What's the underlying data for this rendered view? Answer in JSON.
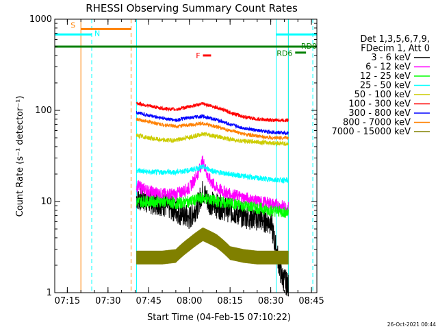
{
  "chart_data": {
    "type": "line",
    "title": "RHESSI Observing Summary Count Rates",
    "xlabel": "Start Time (04-Feb-15 07:10:22)",
    "ylabel": "Count Rate (s⁻¹ detector⁻¹)",
    "ylog": true,
    "ylim": [
      1,
      1000
    ],
    "xlim": [
      "07:10:22",
      "08:47:00"
    ],
    "x_ticks": [
      "07:15",
      "07:30",
      "07:45",
      "08:00",
      "08:15",
      "08:30",
      "08:45"
    ],
    "y_ticks": [
      "1",
      "10",
      "100",
      "1000"
    ],
    "legend_header": [
      "Det 1,3,5,6,7,9,",
      "FDecim 1, Att 0"
    ],
    "legend_position": "right",
    "data_start": "07:40:30",
    "data_end": "08:36:30",
    "series": [
      {
        "name": "3 - 6 keV",
        "color": "#000000",
        "x": [
          "07:40:30",
          "07:45",
          "07:50",
          "07:55",
          "08:00",
          "08:03",
          "08:05",
          "08:07",
          "08:10",
          "08:15",
          "08:20",
          "08:25",
          "08:30",
          "08:32",
          "08:34",
          "08:36:30"
        ],
        "y": [
          11,
          10,
          9.5,
          8,
          6.5,
          9,
          13,
          10,
          9,
          8,
          7,
          6.5,
          6,
          3,
          1.5,
          1.2
        ]
      },
      {
        "name": "6 - 12 keV",
        "color": "#ff00ff",
        "x": [
          "07:40:30",
          "07:45",
          "07:50",
          "07:55",
          "08:00",
          "08:03",
          "08:05",
          "08:07",
          "08:10",
          "08:15",
          "08:20",
          "08:25",
          "08:30",
          "08:36:30"
        ],
        "y": [
          15,
          13,
          12,
          12,
          14,
          20,
          28,
          18,
          14,
          12,
          11,
          10,
          9.5,
          8.5
        ]
      },
      {
        "name": "12 - 25 keV",
        "color": "#00ff00",
        "x": [
          "07:40:30",
          "07:45",
          "07:50",
          "07:55",
          "08:00",
          "08:05",
          "08:10",
          "08:15",
          "08:20",
          "08:25",
          "08:30",
          "08:36:30"
        ],
        "y": [
          10,
          10,
          10,
          9.5,
          10,
          11,
          10,
          9.5,
          9,
          8.5,
          8,
          7.5
        ]
      },
      {
        "name": "25 - 50 keV",
        "color": "#00ffff",
        "x": [
          "07:40:30",
          "07:45",
          "07:50",
          "07:55",
          "08:00",
          "08:05",
          "08:10",
          "08:15",
          "08:20",
          "08:25",
          "08:30",
          "08:36:30"
        ],
        "y": [
          22,
          21,
          21,
          21,
          22,
          24,
          21,
          20,
          19,
          18,
          17.5,
          17
        ]
      },
      {
        "name": "50 - 100 keV",
        "color": "#cccc00",
        "x": [
          "07:40:30",
          "07:45",
          "07:50",
          "07:55",
          "08:00",
          "08:05",
          "08:10",
          "08:15",
          "08:20",
          "08:25",
          "08:30",
          "08:36:30"
        ],
        "y": [
          53,
          50,
          47,
          47,
          51,
          55,
          52,
          48,
          46,
          45,
          44,
          43
        ]
      },
      {
        "name": "100 - 300 keV",
        "color": "#ff0000",
        "x": [
          "07:40:30",
          "07:45",
          "07:50",
          "07:55",
          "08:00",
          "08:05",
          "08:10",
          "08:15",
          "08:20",
          "08:25",
          "08:30",
          "08:36:30"
        ],
        "y": [
          120,
          112,
          105,
          102,
          110,
          118,
          108,
          95,
          85,
          80,
          78,
          78
        ]
      },
      {
        "name": "300 - 800 keV",
        "color": "#0000ff",
        "x": [
          "07:40:30",
          "07:45",
          "07:50",
          "07:55",
          "08:00",
          "08:05",
          "08:10",
          "08:15",
          "08:20",
          "08:25",
          "08:30",
          "08:36:30"
        ],
        "y": [
          95,
          88,
          82,
          78,
          83,
          86,
          79,
          70,
          64,
          60,
          58,
          56
        ]
      },
      {
        "name": "800 - 7000 keV",
        "color": "#ff8000",
        "x": [
          "07:40:30",
          "07:45",
          "07:50",
          "07:55",
          "08:00",
          "08:05",
          "08:10",
          "08:15",
          "08:20",
          "08:25",
          "08:30",
          "08:36:30"
        ],
        "y": [
          80,
          75,
          70,
          67,
          69,
          72,
          66,
          60,
          55,
          52,
          50,
          50
        ]
      },
      {
        "name": "7000 - 15000 keV",
        "color": "#808000",
        "x": [
          "07:40:30",
          "07:45",
          "07:50",
          "07:55",
          "08:00",
          "08:05",
          "08:10",
          "08:15",
          "08:20",
          "08:25",
          "08:30",
          "08:36:30"
        ],
        "y": [
          2.5,
          2.5,
          2.5,
          2.6,
          3.5,
          4.5,
          3.8,
          2.8,
          2.6,
          2.5,
          2.5,
          2.5
        ]
      }
    ],
    "flags": {
      "S": {
        "label": "S",
        "color": "#ff8000",
        "start": "07:20:00",
        "end": "07:38:30",
        "level": 780
      },
      "N": {
        "label": "N",
        "color": "#00ffff",
        "start": "07:10:22",
        "end": "07:24:00",
        "level": 680
      },
      "F": {
        "label": "F",
        "color": "#ff0000",
        "start": "08:05:00",
        "end": "08:08:00",
        "level": 400
      },
      "RD0": {
        "label": "RD0",
        "color": "#008000",
        "start": "07:10:22",
        "end": "08:47:00",
        "level": 500
      },
      "RD6": {
        "label": "RD6",
        "color": "#008000",
        "start": "08:39:00",
        "end": "08:43:00",
        "level": 430
      },
      "cyan_right": {
        "label": "",
        "color": "#00ffff",
        "start": "08:32:00",
        "end": "08:47:00",
        "level": 680
      }
    },
    "vlines": [
      {
        "time": "07:10:22",
        "color": "#00ffff",
        "style": "solid"
      },
      {
        "time": "07:20:00",
        "color": "#ff8000",
        "style": "solid"
      },
      {
        "time": "07:24:00",
        "color": "#00ffff",
        "style": "dashed"
      },
      {
        "time": "07:38:30",
        "color": "#ff8000",
        "style": "dashed"
      },
      {
        "time": "07:40:30",
        "color": "#00ffff",
        "style": "solid"
      },
      {
        "time": "08:32:00",
        "color": "#00ffff",
        "style": "solid"
      },
      {
        "time": "08:36:30",
        "color": "#ff8000",
        "style": "solid"
      },
      {
        "time": "08:36:30",
        "color": "#00ffff",
        "style": "solid"
      },
      {
        "time": "08:45:30",
        "color": "#00ffff",
        "style": "dashed"
      }
    ],
    "timestamp": "26-Oct-2021 00:44"
  }
}
